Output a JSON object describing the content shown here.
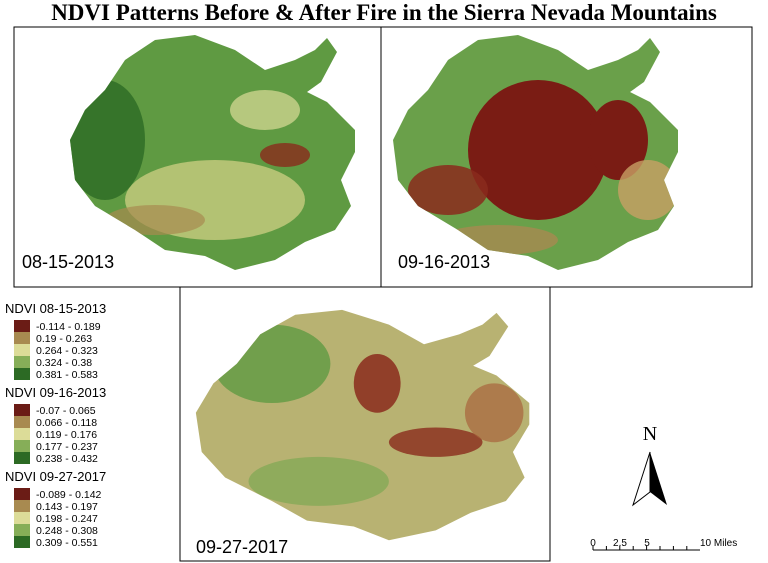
{
  "title": "NDVI Patterns Before & After Fire in the Sierra Nevada Mountains",
  "panels": [
    {
      "date": "08-15-2013"
    },
    {
      "date": "09-16-2013"
    },
    {
      "date": "09-27-2017"
    }
  ],
  "legend": [
    {
      "title": "NDVI 08-15-2013",
      "items": [
        {
          "label": "-0.114 - 0.189",
          "color": "#6b1c16"
        },
        {
          "label": "0.19 - 0.263",
          "color": "#a88a50"
        },
        {
          "label": "0.264 - 0.323",
          "color": "#dcdc98"
        },
        {
          "label": "0.324 - 0.38",
          "color": "#86ae58"
        },
        {
          "label": "0.381 - 0.583",
          "color": "#2c6a24"
        }
      ]
    },
    {
      "title": "NDVI 09-16-2013",
      "items": [
        {
          "label": "-0.07 - 0.065",
          "color": "#6b1c16"
        },
        {
          "label": "0.066 - 0.118",
          "color": "#a88a50"
        },
        {
          "label": "0.119 - 0.176",
          "color": "#dcdc98"
        },
        {
          "label": "0.177 - 0.237",
          "color": "#86ae58"
        },
        {
          "label": "0.238 - 0.432",
          "color": "#2c6a24"
        }
      ]
    },
    {
      "title": "NDVI 09-27-2017",
      "items": [
        {
          "label": "-0.089 - 0.142",
          "color": "#6b1c16"
        },
        {
          "label": "0.143 - 0.197",
          "color": "#a88a50"
        },
        {
          "label": "0.198 - 0.247",
          "color": "#dcdc98"
        },
        {
          "label": "0.248 - 0.308",
          "color": "#86ae58"
        },
        {
          "label": "0.309 - 0.551",
          "color": "#2c6a24"
        }
      ]
    }
  ],
  "north_arrow": {
    "label": "N"
  },
  "scale_bar": {
    "ticks": [
      "0",
      "2.5",
      "5",
      "10 Miles"
    ]
  }
}
